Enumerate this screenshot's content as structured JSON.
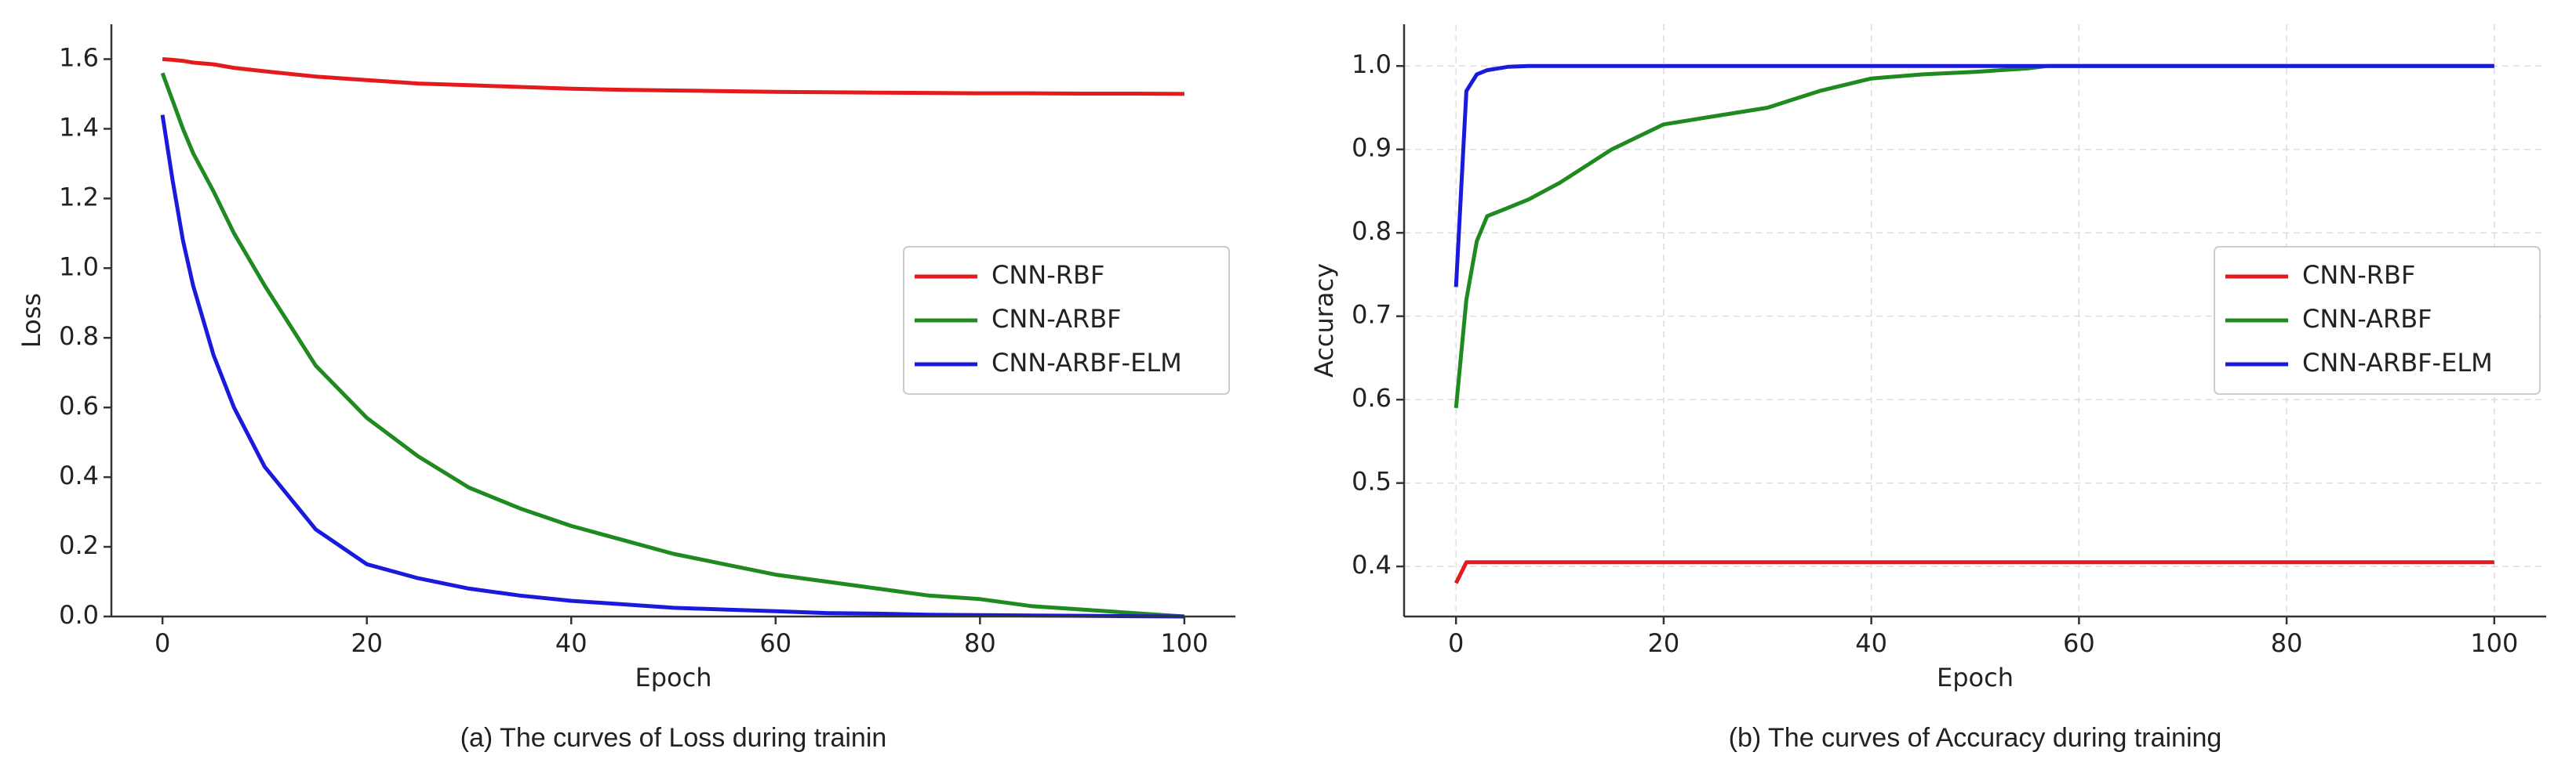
{
  "chart_data": [
    {
      "type": "line",
      "caption": "(a) The curves of Loss during trainin",
      "xlabel": "Epoch",
      "ylabel": "Loss",
      "x": [
        0,
        1,
        2,
        3,
        5,
        7,
        10,
        15,
        20,
        25,
        30,
        35,
        40,
        45,
        50,
        55,
        60,
        65,
        70,
        75,
        80,
        85,
        90,
        95,
        100
      ],
      "series": [
        {
          "name": "CNN-RBF",
          "color": "#e41a1c",
          "values": [
            1.6,
            1.598,
            1.595,
            1.59,
            1.585,
            1.575,
            1.565,
            1.55,
            1.54,
            1.53,
            1.525,
            1.52,
            1.515,
            1.512,
            1.51,
            1.508,
            1.506,
            1.505,
            1.504,
            1.503,
            1.502,
            1.502,
            1.501,
            1.501,
            1.5
          ]
        },
        {
          "name": "CNN-ARBF",
          "color": "#1f8a1f",
          "values": [
            1.56,
            1.48,
            1.4,
            1.33,
            1.22,
            1.1,
            0.95,
            0.72,
            0.57,
            0.46,
            0.37,
            0.31,
            0.26,
            0.22,
            0.18,
            0.15,
            0.12,
            0.1,
            0.08,
            0.06,
            0.05,
            0.03,
            0.02,
            0.01,
            0.0
          ]
        },
        {
          "name": "CNN-ARBF-ELM",
          "color": "#1a1adc",
          "values": [
            1.44,
            1.25,
            1.08,
            0.95,
            0.75,
            0.6,
            0.43,
            0.25,
            0.15,
            0.11,
            0.08,
            0.06,
            0.045,
            0.035,
            0.025,
            0.02,
            0.015,
            0.01,
            0.008,
            0.005,
            0.004,
            0.003,
            0.002,
            0.001,
            0.0
          ]
        }
      ],
      "xlim": [
        -5,
        105
      ],
      "ylim": [
        0,
        1.7
      ],
      "xticks": [
        0,
        20,
        40,
        60,
        80,
        100
      ],
      "yticks": [
        {
          "value": 0,
          "label": "0.0"
        },
        0.2,
        0.4,
        0.6,
        0.8,
        {
          "value": 1,
          "label": "1.0"
        },
        1.2,
        1.4,
        1.6
      ],
      "grid": false,
      "legend": "center right"
    },
    {
      "type": "line",
      "caption": "(b) The curves of Accuracy during training",
      "xlabel": "Epoch",
      "ylabel": "Accuracy",
      "x": [
        0,
        1,
        2,
        3,
        5,
        7,
        10,
        15,
        20,
        25,
        30,
        35,
        40,
        45,
        50,
        55,
        57,
        60,
        65,
        70,
        75,
        80,
        85,
        90,
        95,
        100
      ],
      "series": [
        {
          "name": "CNN-RBF",
          "color": "#e41a1c",
          "values": [
            0.38,
            0.405,
            0.405,
            0.405,
            0.405,
            0.405,
            0.405,
            0.405,
            0.405,
            0.405,
            0.405,
            0.405,
            0.405,
            0.405,
            0.405,
            0.405,
            0.405,
            0.405,
            0.405,
            0.405,
            0.405,
            0.405,
            0.405,
            0.405,
            0.405,
            0.405
          ]
        },
        {
          "name": "CNN-ARBF",
          "color": "#1f8a1f",
          "values": [
            0.59,
            0.72,
            0.79,
            0.82,
            0.83,
            0.84,
            0.86,
            0.9,
            0.93,
            0.94,
            0.95,
            0.97,
            0.985,
            0.99,
            0.993,
            0.997,
            1.0,
            1.0,
            1.0,
            1.0,
            1.0,
            1.0,
            1.0,
            1.0,
            1.0,
            1.0
          ]
        },
        {
          "name": "CNN-ARBF-ELM",
          "color": "#1a1adc",
          "values": [
            0.735,
            0.97,
            0.99,
            0.995,
            0.999,
            1.0,
            1.0,
            1.0,
            1.0,
            1.0,
            1.0,
            1.0,
            1.0,
            1.0,
            1.0,
            1.0,
            1.0,
            1.0,
            1.0,
            1.0,
            1.0,
            1.0,
            1.0,
            1.0,
            1.0,
            1.0
          ]
        }
      ],
      "xlim": [
        -5,
        105
      ],
      "ylim": [
        0.34,
        1.05
      ],
      "xticks": [
        0,
        20,
        40,
        60,
        80,
        100
      ],
      "yticks": [
        0.4,
        0.5,
        0.6,
        0.7,
        0.8,
        0.9,
        {
          "value": 1,
          "label": "1.0"
        }
      ],
      "grid": true,
      "legend": "center right"
    }
  ]
}
